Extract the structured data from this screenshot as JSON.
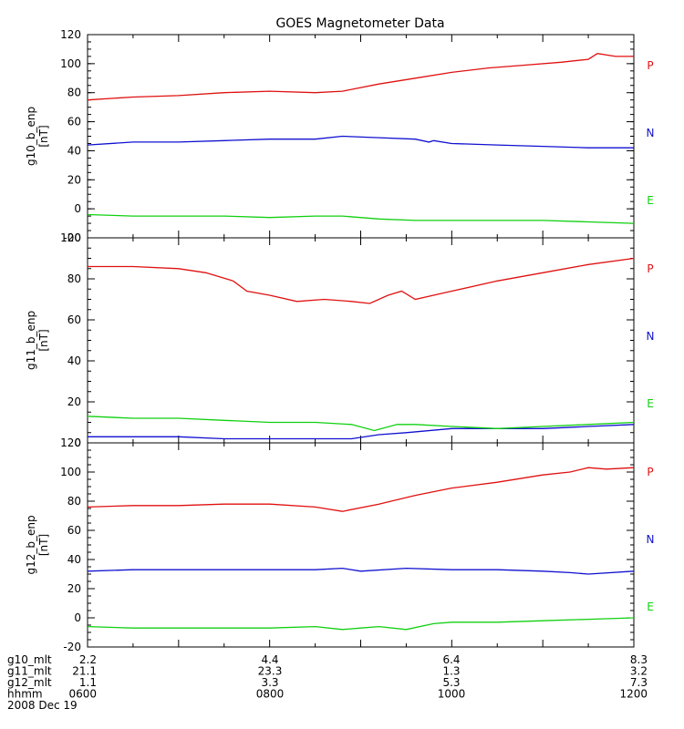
{
  "chart_data": {
    "type": "line",
    "title": "GOES Magnetometer Data",
    "x_tick_labels": [
      "0600",
      "0800",
      "1000",
      "1200"
    ],
    "xlim_hours": [
      6,
      12
    ],
    "panels": [
      {
        "ylabel": "g10_b_enp",
        "unit": "[nT]",
        "ylim": [
          -20,
          120
        ],
        "yticks": [
          -20,
          0,
          20,
          40,
          60,
          80,
          100,
          120
        ],
        "series": [
          {
            "name": "P",
            "color": "#e01010",
            "x": [
              6.0,
              6.5,
              7.0,
              7.5,
              8.0,
              8.5,
              8.8,
              9.2,
              9.6,
              10.0,
              10.4,
              10.8,
              11.2,
              11.5,
              11.6,
              11.8,
              12.0
            ],
            "y": [
              75,
              77,
              78,
              80,
              81,
              80,
              81,
              86,
              90,
              94,
              97,
              99,
              101,
              103,
              107,
              105,
              105
            ]
          },
          {
            "name": "N",
            "color": "#1010d0",
            "x": [
              6.0,
              6.5,
              7.0,
              7.5,
              8.0,
              8.5,
              8.8,
              9.2,
              9.6,
              9.75,
              9.8,
              10.0,
              10.5,
              11.0,
              11.5,
              12.0
            ],
            "y": [
              44,
              46,
              46,
              47,
              48,
              48,
              50,
              49,
              48,
              46,
              47,
              45,
              44,
              43,
              42,
              42
            ]
          },
          {
            "name": "E",
            "color": "#10d010",
            "x": [
              6.0,
              6.5,
              7.0,
              7.5,
              8.0,
              8.5,
              8.8,
              9.2,
              9.6,
              10.0,
              10.5,
              11.0,
              11.5,
              12.0
            ],
            "y": [
              -4,
              -5,
              -5,
              -5,
              -6,
              -5,
              -5,
              -7,
              -8,
              -8,
              -8,
              -8,
              -9,
              -10
            ]
          }
        ]
      },
      {
        "ylabel": "g11_b_enp",
        "unit": "[nT]",
        "ylim": [
          0,
          100
        ],
        "yticks": [
          0,
          20,
          40,
          60,
          80,
          100
        ],
        "series": [
          {
            "name": "P",
            "color": "#e01010",
            "x": [
              6.0,
              6.5,
              7.0,
              7.3,
              7.6,
              7.75,
              8.0,
              8.3,
              8.6,
              8.9,
              9.1,
              9.3,
              9.45,
              9.6,
              9.8,
              10.0,
              10.5,
              11.0,
              11.5,
              12.0
            ],
            "y": [
              86,
              86,
              85,
              83,
              79,
              74,
              72,
              69,
              70,
              69,
              68,
              72,
              74,
              70,
              72,
              74,
              79,
              83,
              87,
              90
            ]
          },
          {
            "name": "N",
            "color": "#1010d0",
            "x": [
              6.0,
              6.5,
              7.0,
              7.5,
              8.0,
              8.5,
              8.9,
              9.2,
              9.5,
              10.0,
              10.5,
              11.0,
              11.5,
              12.0
            ],
            "y": [
              3,
              3,
              3,
              2,
              2,
              2,
              2,
              4,
              5,
              7,
              7,
              7,
              8,
              9
            ]
          },
          {
            "name": "E",
            "color": "#10d010",
            "x": [
              6.0,
              6.5,
              7.0,
              7.5,
              8.0,
              8.5,
              8.9,
              9.15,
              9.4,
              9.6,
              10.0,
              10.5,
              11.0,
              11.5,
              12.0
            ],
            "y": [
              13,
              12,
              12,
              11,
              10,
              10,
              9,
              6,
              9,
              9,
              8,
              7,
              8,
              9,
              10
            ]
          }
        ]
      },
      {
        "ylabel": "g12_b_enp",
        "unit": "[nT]",
        "ylim": [
          -20,
          120
        ],
        "yticks": [
          -20,
          0,
          20,
          40,
          60,
          80,
          100,
          120
        ],
        "series": [
          {
            "name": "P",
            "color": "#e01010",
            "x": [
              6.0,
              6.5,
              7.0,
              7.5,
              8.0,
              8.5,
              8.8,
              9.2,
              9.6,
              10.0,
              10.5,
              11.0,
              11.3,
              11.5,
              11.7,
              12.0
            ],
            "y": [
              76,
              77,
              77,
              78,
              78,
              76,
              73,
              78,
              84,
              89,
              93,
              98,
              100,
              103,
              102,
              103
            ]
          },
          {
            "name": "N",
            "color": "#1010d0",
            "x": [
              6.0,
              6.5,
              7.0,
              7.5,
              8.0,
              8.5,
              8.8,
              9.0,
              9.5,
              10.0,
              10.5,
              11.0,
              11.3,
              11.5,
              12.0
            ],
            "y": [
              32,
              33,
              33,
              33,
              33,
              33,
              34,
              32,
              34,
              33,
              33,
              32,
              31,
              30,
              32
            ]
          },
          {
            "name": "E",
            "color": "#10d010",
            "x": [
              6.0,
              6.5,
              7.0,
              7.5,
              8.0,
              8.5,
              8.8,
              9.0,
              9.2,
              9.5,
              9.8,
              10.0,
              10.5,
              11.0,
              11.5,
              12.0
            ],
            "y": [
              -6,
              -7,
              -7,
              -7,
              -7,
              -6,
              -8,
              -7,
              -6,
              -8,
              -4,
              -3,
              -3,
              -2,
              -1,
              0
            ]
          }
        ]
      }
    ],
    "mlt_rows": [
      {
        "label": "g10_mlt",
        "values": [
          "2.2",
          "4.4",
          "6.4",
          "8.3"
        ]
      },
      {
        "label": "g11_mlt",
        "values": [
          "21.1",
          "23.3",
          "1.3",
          "3.2"
        ]
      },
      {
        "label": "g12_mlt",
        "values": [
          "1.1",
          "3.3",
          "5.3",
          "7.3"
        ]
      },
      {
        "label": "hhmm",
        "values": [
          "0600",
          "0800",
          "1000",
          "1200"
        ]
      }
    ],
    "date": "2008 Dec 19",
    "grid": false,
    "legend_placement": "right of each panel"
  }
}
